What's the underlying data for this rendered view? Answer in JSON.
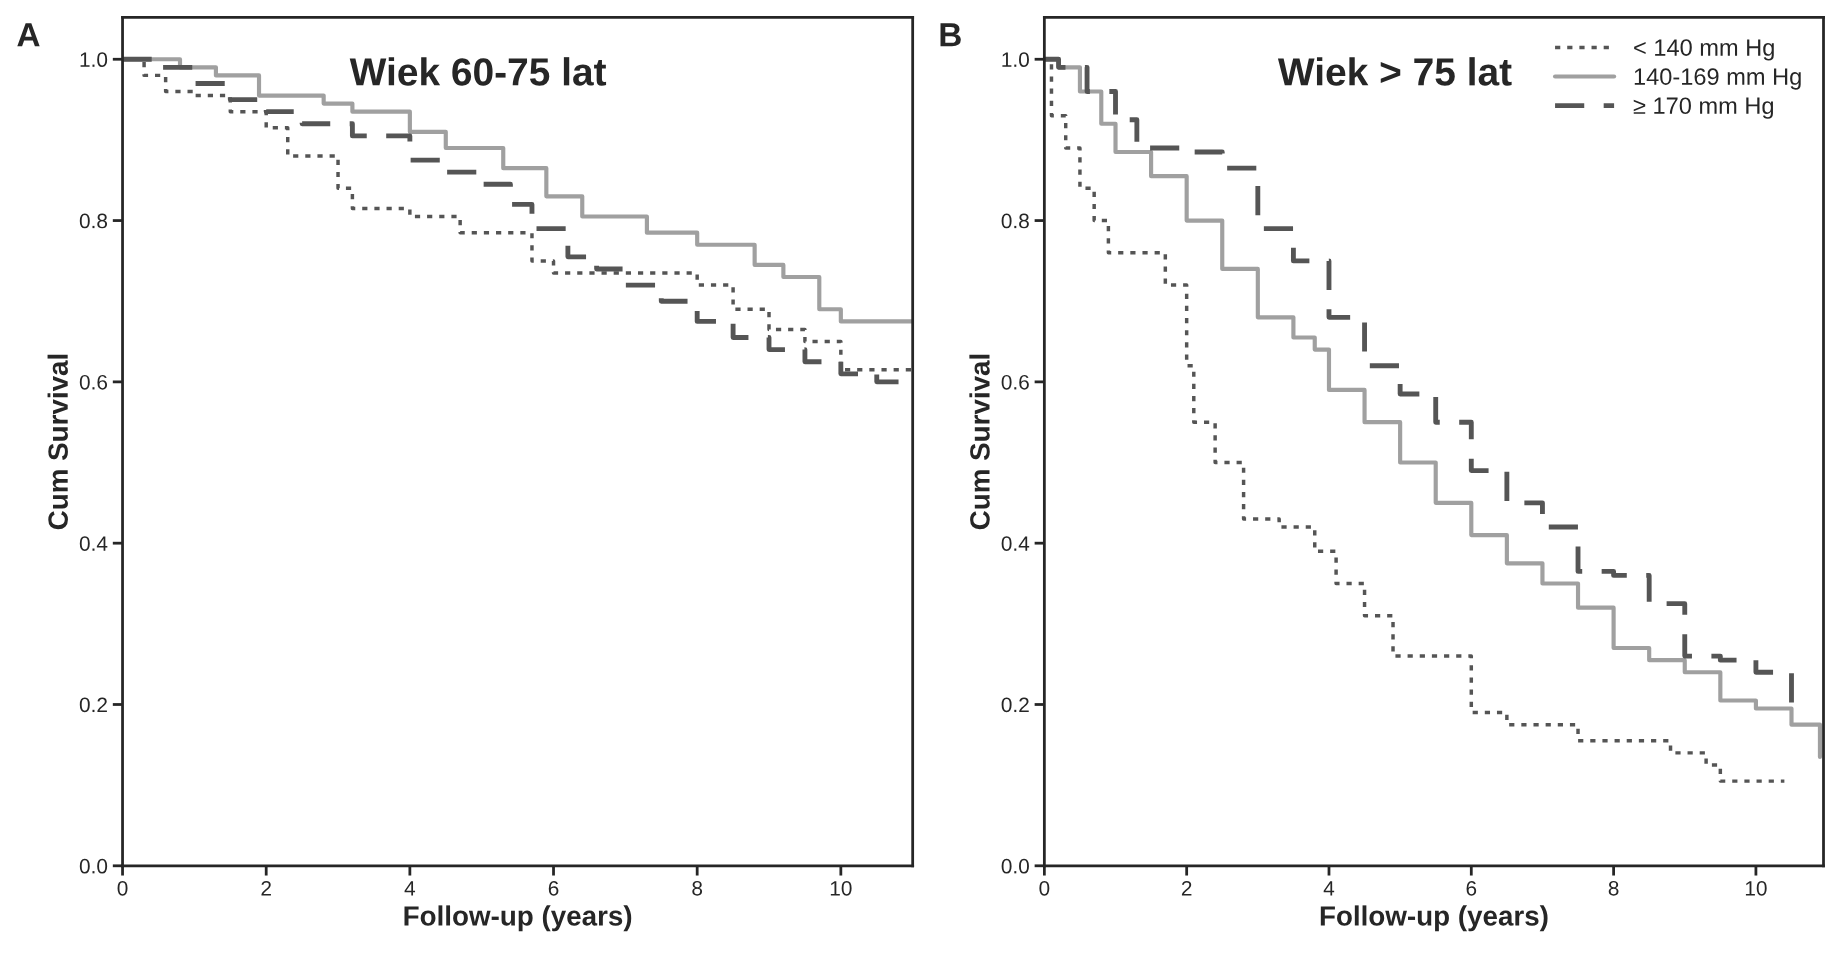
{
  "chart_data": [
    {
      "type": "step",
      "title": "Wiek 60-75 lat",
      "xlabel": "Follow-up (years)",
      "ylabel": "Cum Survival",
      "annotations": [
        "A"
      ],
      "xlim": [
        0,
        11
      ],
      "ylim": [
        0,
        1.052
      ],
      "xticks": [
        0,
        2,
        4,
        6,
        8,
        10
      ],
      "yticks": [
        {
          "value": 0,
          "label": "0.0"
        },
        {
          "value": 0.2,
          "label": "0.2"
        },
        {
          "value": 0.4,
          "label": "0.4"
        },
        {
          "value": 0.6,
          "label": "0.6"
        },
        {
          "value": 0.8,
          "label": "0.8"
        },
        {
          "value": 1,
          "label": "1.0"
        }
      ],
      "grid": false,
      "legend": false,
      "series": [
        {
          "color": "#555555",
          "line_style": "dotted",
          "x": [
            0,
            0.3,
            0.6,
            1.0,
            1.5,
            2.0,
            2.3,
            3.0,
            3.2,
            4.0,
            4.7,
            5.7,
            6.0,
            7.0,
            8.0,
            8.5,
            9.0,
            9.5,
            10.0,
            11.0
          ],
          "values": [
            1.0,
            0.98,
            0.96,
            0.955,
            0.935,
            0.915,
            0.88,
            0.84,
            0.815,
            0.805,
            0.785,
            0.75,
            0.735,
            0.735,
            0.72,
            0.69,
            0.665,
            0.65,
            0.615,
            0.61
          ]
        },
        {
          "color": "#a0a0a0",
          "line_style": "solid",
          "x": [
            0,
            0.8,
            1.3,
            1.9,
            2.8,
            3.2,
            4.0,
            4.5,
            5.3,
            5.9,
            6.4,
            7.3,
            8.0,
            8.8,
            9.2,
            9.7,
            10.0,
            11.0
          ],
          "values": [
            1.0,
            0.99,
            0.98,
            0.955,
            0.945,
            0.935,
            0.91,
            0.89,
            0.865,
            0.83,
            0.805,
            0.785,
            0.77,
            0.745,
            0.73,
            0.69,
            0.675,
            0.675
          ]
        },
        {
          "color": "#555555",
          "line_style": "dashed",
          "x": [
            0,
            0.5,
            1.0,
            1.5,
            2.0,
            2.5,
            3.2,
            4.0,
            4.5,
            5.0,
            5.4,
            5.7,
            6.2,
            6.6,
            7.0,
            7.5,
            8.0,
            8.5,
            9.0,
            9.5,
            10.0,
            10.5,
            11.0
          ],
          "values": [
            1.0,
            0.99,
            0.97,
            0.95,
            0.935,
            0.92,
            0.905,
            0.875,
            0.86,
            0.845,
            0.82,
            0.79,
            0.755,
            0.74,
            0.72,
            0.7,
            0.675,
            0.655,
            0.64,
            0.625,
            0.61,
            0.6,
            0.6
          ]
        }
      ]
    },
    {
      "type": "step",
      "title": "Wiek > 75 lat",
      "xlabel": "Follow-up (years)",
      "ylabel": "Cum Survival",
      "annotations": [
        "B"
      ],
      "xlim": [
        0,
        10.95
      ],
      "ylim": [
        0,
        1.052
      ],
      "xticks": [
        0,
        2,
        4,
        6,
        8,
        10
      ],
      "yticks": [
        {
          "value": 0,
          "label": "0.0"
        },
        {
          "value": 0.2,
          "label": "0.2"
        },
        {
          "value": 0.4,
          "label": "0.4"
        },
        {
          "value": 0.6,
          "label": "0.6"
        },
        {
          "value": 0.8,
          "label": "0.8"
        },
        {
          "value": 1,
          "label": "1.0"
        }
      ],
      "grid": false,
      "legend": "top right",
      "series": [
        {
          "name": "< 140 mm Hg",
          "color": "#555555",
          "line_style": "dotted",
          "x": [
            0,
            0.1,
            0.3,
            0.5,
            0.7,
            0.9,
            1.5,
            1.7,
            2.0,
            2.1,
            2.4,
            2.8,
            3.3,
            3.8,
            4.1,
            4.5,
            4.9,
            5.8,
            6.0,
            6.5,
            7.5,
            8.8,
            9.3,
            9.5,
            10.4
          ],
          "values": [
            1.0,
            0.93,
            0.89,
            0.84,
            0.8,
            0.76,
            0.76,
            0.72,
            0.62,
            0.55,
            0.5,
            0.43,
            0.42,
            0.39,
            0.35,
            0.31,
            0.26,
            0.26,
            0.19,
            0.175,
            0.155,
            0.14,
            0.125,
            0.105,
            0.105
          ]
        },
        {
          "name": "140-169 mm Hg",
          "color": "#a0a0a0",
          "line_style": "solid",
          "x": [
            0,
            0.2,
            0.5,
            0.8,
            1.0,
            1.5,
            2.0,
            2.5,
            3.0,
            3.5,
            3.8,
            4.0,
            4.5,
            5.0,
            5.5,
            6.0,
            6.5,
            7.0,
            7.5,
            8.0,
            8.5,
            9.0,
            9.5,
            10.0,
            10.5,
            10.9
          ],
          "values": [
            1.0,
            0.99,
            0.96,
            0.92,
            0.885,
            0.855,
            0.8,
            0.74,
            0.68,
            0.655,
            0.64,
            0.59,
            0.55,
            0.5,
            0.45,
            0.41,
            0.375,
            0.35,
            0.32,
            0.27,
            0.255,
            0.24,
            0.205,
            0.195,
            0.175,
            0.135
          ]
        },
        {
          "name": "≥ 170 mm Hg",
          "color": "#555555",
          "line_style": "dashed",
          "x": [
            0,
            0.2,
            0.6,
            1.0,
            1.3,
            2.0,
            2.5,
            3.0,
            3.5,
            4.0,
            4.5,
            5.0,
            5.5,
            6.0,
            6.5,
            7.0,
            7.5,
            8.0,
            8.5,
            9.0,
            9.5,
            10.0,
            10.5
          ],
          "values": [
            1.0,
            0.99,
            0.96,
            0.925,
            0.89,
            0.885,
            0.865,
            0.79,
            0.75,
            0.68,
            0.62,
            0.585,
            0.55,
            0.49,
            0.45,
            0.42,
            0.365,
            0.36,
            0.325,
            0.26,
            0.255,
            0.24,
            0.2
          ]
        }
      ]
    }
  ]
}
